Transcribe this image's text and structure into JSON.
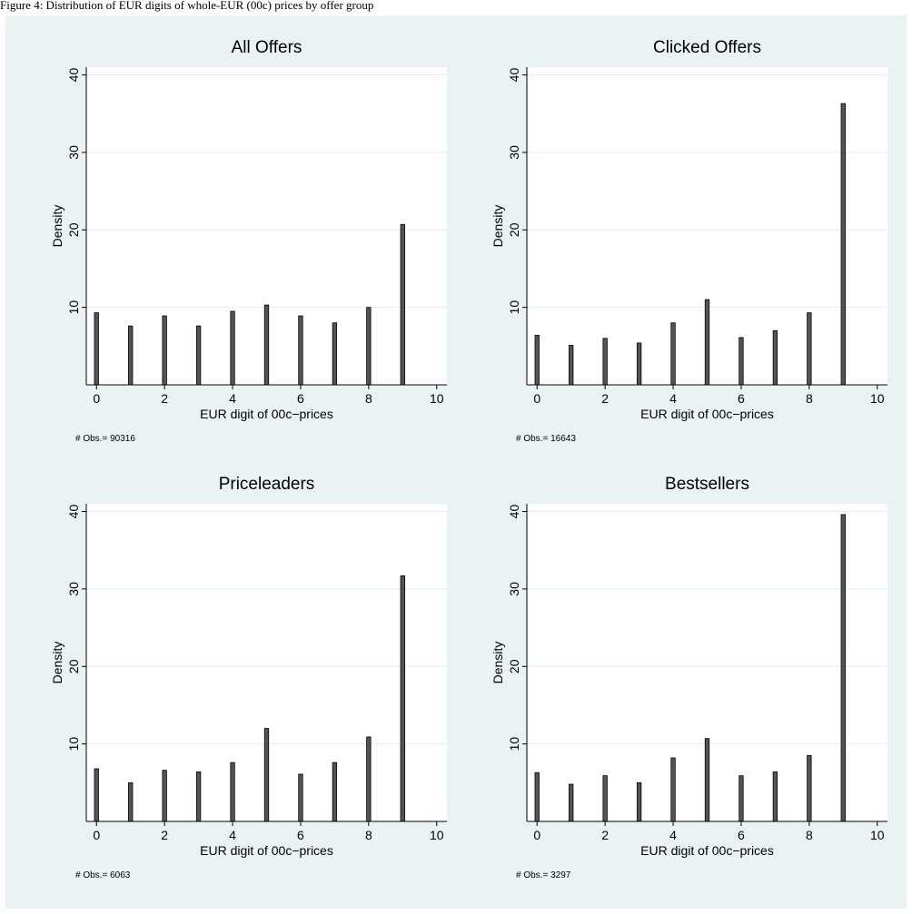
{
  "caption": "Figure 4: Distribution of EUR digits of whole-EUR (00c) prices by offer group",
  "chart_data": [
    {
      "type": "bar",
      "title": "All Offers",
      "xlabel": "EUR digit of 00c−prices",
      "ylabel": "Density",
      "note": "# Obs.=  90316",
      "x": [
        0,
        1,
        2,
        3,
        4,
        5,
        6,
        7,
        8,
        9
      ],
      "values": [
        9.3,
        7.6,
        8.9,
        7.6,
        9.5,
        10.3,
        8.9,
        8.0,
        10.0,
        20.7
      ],
      "xlim": [
        -0.3,
        10.3
      ],
      "ylim": [
        0,
        41
      ],
      "xticks": [
        0,
        2,
        4,
        6,
        8,
        10
      ],
      "yticks": [
        10,
        20,
        30,
        40
      ],
      "grid": true
    },
    {
      "type": "bar",
      "title": "Clicked Offers",
      "xlabel": "EUR digit of 00c−prices",
      "ylabel": "Density",
      "note": "# Obs.=  16643",
      "x": [
        0,
        1,
        2,
        3,
        4,
        5,
        6,
        7,
        8,
        9
      ],
      "values": [
        6.4,
        5.1,
        6.0,
        5.4,
        8.0,
        11.0,
        6.1,
        7.0,
        9.3,
        36.3
      ],
      "xlim": [
        -0.3,
        10.3
      ],
      "ylim": [
        0,
        41
      ],
      "xticks": [
        0,
        2,
        4,
        6,
        8,
        10
      ],
      "yticks": [
        10,
        20,
        30,
        40
      ],
      "grid": true
    },
    {
      "type": "bar",
      "title": "Priceleaders",
      "xlabel": "EUR digit of 00c−prices",
      "ylabel": "Density",
      "note": "# Obs.= 6063",
      "x": [
        0,
        1,
        2,
        3,
        4,
        5,
        6,
        7,
        8,
        9
      ],
      "values": [
        6.8,
        5.0,
        6.6,
        6.4,
        7.6,
        12.0,
        6.1,
        7.6,
        10.9,
        31.7
      ],
      "xlim": [
        -0.3,
        10.3
      ],
      "ylim": [
        0,
        41
      ],
      "xticks": [
        0,
        2,
        4,
        6,
        8,
        10
      ],
      "yticks": [
        10,
        20,
        30,
        40
      ],
      "grid": true
    },
    {
      "type": "bar",
      "title": "Bestsellers",
      "xlabel": "EUR digit of 00c−prices",
      "ylabel": "Density",
      "note": "# Obs.= 3297",
      "x": [
        0,
        1,
        2,
        3,
        4,
        5,
        6,
        7,
        8,
        9
      ],
      "values": [
        6.3,
        4.8,
        5.9,
        5.0,
        8.2,
        10.7,
        5.9,
        6.4,
        8.5,
        39.6
      ],
      "xlim": [
        -0.3,
        10.3
      ],
      "ylim": [
        0,
        41
      ],
      "xticks": [
        0,
        2,
        4,
        6,
        8,
        10
      ],
      "yticks": [
        10,
        20,
        30,
        40
      ],
      "grid": true
    }
  ],
  "colors": {
    "frame_background": "#eaf2f3",
    "plot_background": "#ffffff",
    "bar_fill": "#555555",
    "bar_edge": "#000000",
    "grid": "#e4ecee"
  }
}
